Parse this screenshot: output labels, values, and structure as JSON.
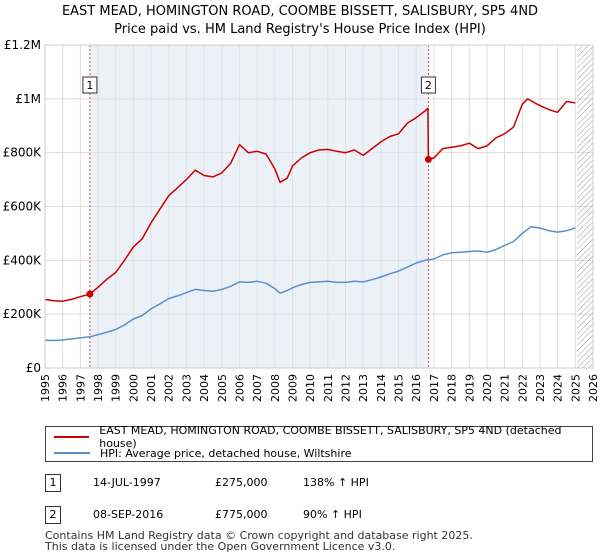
{
  "title_line1": "EAST MEAD, HOMINGTON ROAD, COOMBE BISSETT, SALISBURY, SP5 4ND",
  "title_line2": "Price paid vs. HM Land Registry's House Price Index (HPI)",
  "legend": {
    "property": "EAST MEAD, HOMINGTON ROAD, COOMBE BISSETT, SALISBURY, SP5 4ND (detached house)",
    "hpi": "HPI: Average price, detached house, Wiltshire"
  },
  "sales": [
    {
      "num": "1",
      "date": "14-JUL-1997",
      "price": "£275,000",
      "hpi": "138% ↑ HPI",
      "year": 1997.54,
      "value": 275000
    },
    {
      "num": "2",
      "date": "08-SEP-2016",
      "price": "£775,000",
      "hpi": "90% ↑ HPI",
      "year": 2016.69,
      "value": 775000
    }
  ],
  "footer_line1": "Contains HM Land Registry data © Crown copyright and database right 2025.",
  "footer_line2": "This data is licensed under the Open Government Licence v3.0.",
  "colors": {
    "property": "#cc0000",
    "hpi": "#5b8fc9",
    "grid": "#dddddd",
    "shade": "#dce6f3",
    "marker": "#cc0000"
  },
  "chart_data": {
    "type": "line",
    "title": "Price paid vs. HM Land Registry's House Price Index (HPI)",
    "xlim": [
      1995,
      2026
    ],
    "ylim": [
      0,
      1200000
    ],
    "x_ticks": [
      1995,
      1996,
      1997,
      1998,
      1999,
      2000,
      2001,
      2002,
      2003,
      2004,
      2005,
      2006,
      2007,
      2008,
      2009,
      2010,
      2011,
      2012,
      2013,
      2014,
      2015,
      2016,
      2017,
      2018,
      2019,
      2020,
      2021,
      2022,
      2023,
      2024,
      2025,
      2026
    ],
    "y_ticks": [
      {
        "value": 0,
        "label": "£0"
      },
      {
        "value": 200000,
        "label": "£200K"
      },
      {
        "value": 400000,
        "label": "£400K"
      },
      {
        "value": 600000,
        "label": "£600K"
      },
      {
        "value": 800000,
        "label": "£800K"
      },
      {
        "value": 1000000,
        "label": "£1M"
      },
      {
        "value": 1200000,
        "label": "£1.2M"
      }
    ],
    "hatched_after": 2025.1,
    "series": [
      {
        "name": "EAST MEAD, HOMINGTON ROAD, COOMBE BISSETT, SALISBURY, SP5 4ND (detached house)",
        "x": [
          1995.0,
          1995.5,
          1996.0,
          1996.5,
          1997.0,
          1997.54,
          1998.0,
          1998.5,
          1999.0,
          1999.5,
          2000.0,
          2000.5,
          2001.0,
          2001.5,
          2002.0,
          2002.5,
          2003.0,
          2003.5,
          2004.0,
          2004.5,
          2005.0,
          2005.5,
          2006.0,
          2006.5,
          2007.0,
          2007.5,
          2008.0,
          2008.3,
          2008.7,
          2009.0,
          2009.5,
          2010.0,
          2010.5,
          2011.0,
          2011.5,
          2012.0,
          2012.5,
          2013.0,
          2013.5,
          2014.0,
          2014.5,
          2015.0,
          2015.5,
          2016.0,
          2016.5,
          2016.66,
          2016.69,
          2017.0,
          2017.5,
          2018.0,
          2018.5,
          2019.0,
          2019.5,
          2020.0,
          2020.5,
          2021.0,
          2021.5,
          2022.0,
          2022.3,
          2022.7,
          2023.0,
          2023.5,
          2024.0,
          2024.5,
          2025.0
        ],
        "y": [
          255000,
          250000,
          248000,
          255000,
          265000,
          275000,
          300000,
          330000,
          355000,
          400000,
          450000,
          480000,
          540000,
          590000,
          640000,
          670000,
          700000,
          735000,
          715000,
          710000,
          725000,
          760000,
          830000,
          800000,
          805000,
          795000,
          740000,
          690000,
          705000,
          750000,
          780000,
          800000,
          810000,
          812000,
          805000,
          800000,
          810000,
          790000,
          815000,
          840000,
          860000,
          870000,
          910000,
          930000,
          955000,
          965000,
          775000,
          780000,
          815000,
          820000,
          825000,
          835000,
          815000,
          825000,
          855000,
          870000,
          895000,
          980000,
          1000000,
          985000,
          975000,
          960000,
          950000,
          990000,
          985000
        ]
      },
      {
        "name": "HPI: Average price, detached house, Wiltshire",
        "x": [
          1995.0,
          1995.5,
          1996.0,
          1996.5,
          1997.0,
          1997.54,
          1998.0,
          1998.5,
          1999.0,
          1999.5,
          2000.0,
          2000.5,
          2001.0,
          2001.5,
          2002.0,
          2002.5,
          2003.0,
          2003.5,
          2004.0,
          2004.5,
          2005.0,
          2005.5,
          2006.0,
          2006.5,
          2007.0,
          2007.5,
          2008.0,
          2008.3,
          2008.7,
          2009.0,
          2009.5,
          2010.0,
          2010.5,
          2011.0,
          2011.5,
          2012.0,
          2012.5,
          2013.0,
          2013.5,
          2014.0,
          2014.5,
          2015.0,
          2015.5,
          2016.0,
          2016.5,
          2017.0,
          2017.5,
          2018.0,
          2018.5,
          2019.0,
          2019.5,
          2020.0,
          2020.5,
          2021.0,
          2021.5,
          2022.0,
          2022.5,
          2023.0,
          2023.5,
          2024.0,
          2024.5,
          2025.0
        ],
        "y": [
          103000,
          102000,
          104000,
          108000,
          112000,
          116000,
          124000,
          133000,
          143000,
          160000,
          182000,
          195000,
          220000,
          238000,
          258000,
          268000,
          280000,
          292000,
          288000,
          285000,
          292000,
          303000,
          320000,
          318000,
          322000,
          315000,
          295000,
          278000,
          288000,
          298000,
          310000,
          318000,
          320000,
          322000,
          318000,
          318000,
          322000,
          320000,
          328000,
          338000,
          350000,
          360000,
          375000,
          390000,
          400000,
          405000,
          420000,
          428000,
          430000,
          433000,
          435000,
          430000,
          440000,
          455000,
          470000,
          500000,
          525000,
          520000,
          510000,
          505000,
          510000,
          520000
        ]
      }
    ],
    "markers": [
      {
        "label": "1",
        "x": 1997.54,
        "y": 275000
      },
      {
        "label": "2",
        "x": 2016.69,
        "y": 775000
      }
    ]
  }
}
